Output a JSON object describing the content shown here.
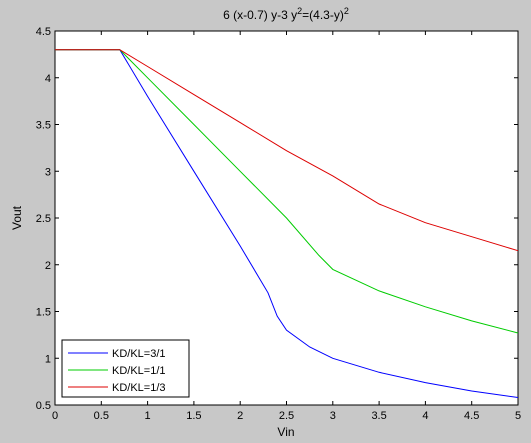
{
  "chart_data": {
    "type": "line",
    "title": {
      "parts": [
        {
          "text": "6 (x-0.7) y-3 y",
          "sup": false
        },
        {
          "text": "2",
          "sup": true
        },
        {
          "text": "=(4.3-y)",
          "sup": false
        },
        {
          "text": "2",
          "sup": true
        }
      ]
    },
    "xlabel": "Vin",
    "ylabel": "Vout",
    "xlim": [
      0,
      5
    ],
    "ylim": [
      0.5,
      4.5
    ],
    "xticks": [
      0,
      0.5,
      1,
      1.5,
      2,
      2.5,
      3,
      3.5,
      4,
      4.5,
      5
    ],
    "xtick_labels": [
      "0",
      "0.5",
      "1",
      "1.5",
      "2",
      "2.5",
      "3",
      "3.5",
      "4",
      "4.5",
      "5"
    ],
    "yticks": [
      0.5,
      1,
      1.5,
      2,
      2.5,
      3,
      3.5,
      4,
      4.5
    ],
    "ytick_labels": [
      "0.5",
      "1",
      "1.5",
      "2",
      "2.5",
      "3",
      "3.5",
      "4",
      "4.5"
    ],
    "grid": false,
    "legend_position": "bottom-left",
    "series": [
      {
        "name": "KD/KL=3/1",
        "color": "#0000ff",
        "x": [
          0,
          0.7,
          1.0,
          1.5,
          2.0,
          2.3,
          2.4,
          2.5,
          2.75,
          3.0,
          3.5,
          4.0,
          4.5,
          5.0
        ],
        "y": [
          4.3,
          4.3,
          3.8,
          3.0,
          2.2,
          1.7,
          1.45,
          1.3,
          1.12,
          1.0,
          0.85,
          0.74,
          0.65,
          0.58
        ]
      },
      {
        "name": "KD/KL=1/1",
        "color": "#00cc00",
        "x": [
          0,
          0.7,
          1.0,
          1.5,
          2.0,
          2.5,
          2.85,
          3.0,
          3.5,
          4.0,
          4.5,
          5.0
        ],
        "y": [
          4.3,
          4.3,
          4.0,
          3.5,
          3.0,
          2.5,
          2.1,
          1.95,
          1.72,
          1.55,
          1.4,
          1.27
        ]
      },
      {
        "name": "KD/KL=1/3",
        "color": "#dd0000",
        "x": [
          0,
          0.7,
          1.0,
          1.5,
          2.0,
          2.5,
          3.0,
          3.5,
          4.0,
          4.5,
          5.0
        ],
        "y": [
          4.3,
          4.3,
          4.12,
          3.82,
          3.52,
          3.22,
          2.95,
          2.65,
          2.45,
          2.3,
          2.15
        ]
      }
    ]
  }
}
